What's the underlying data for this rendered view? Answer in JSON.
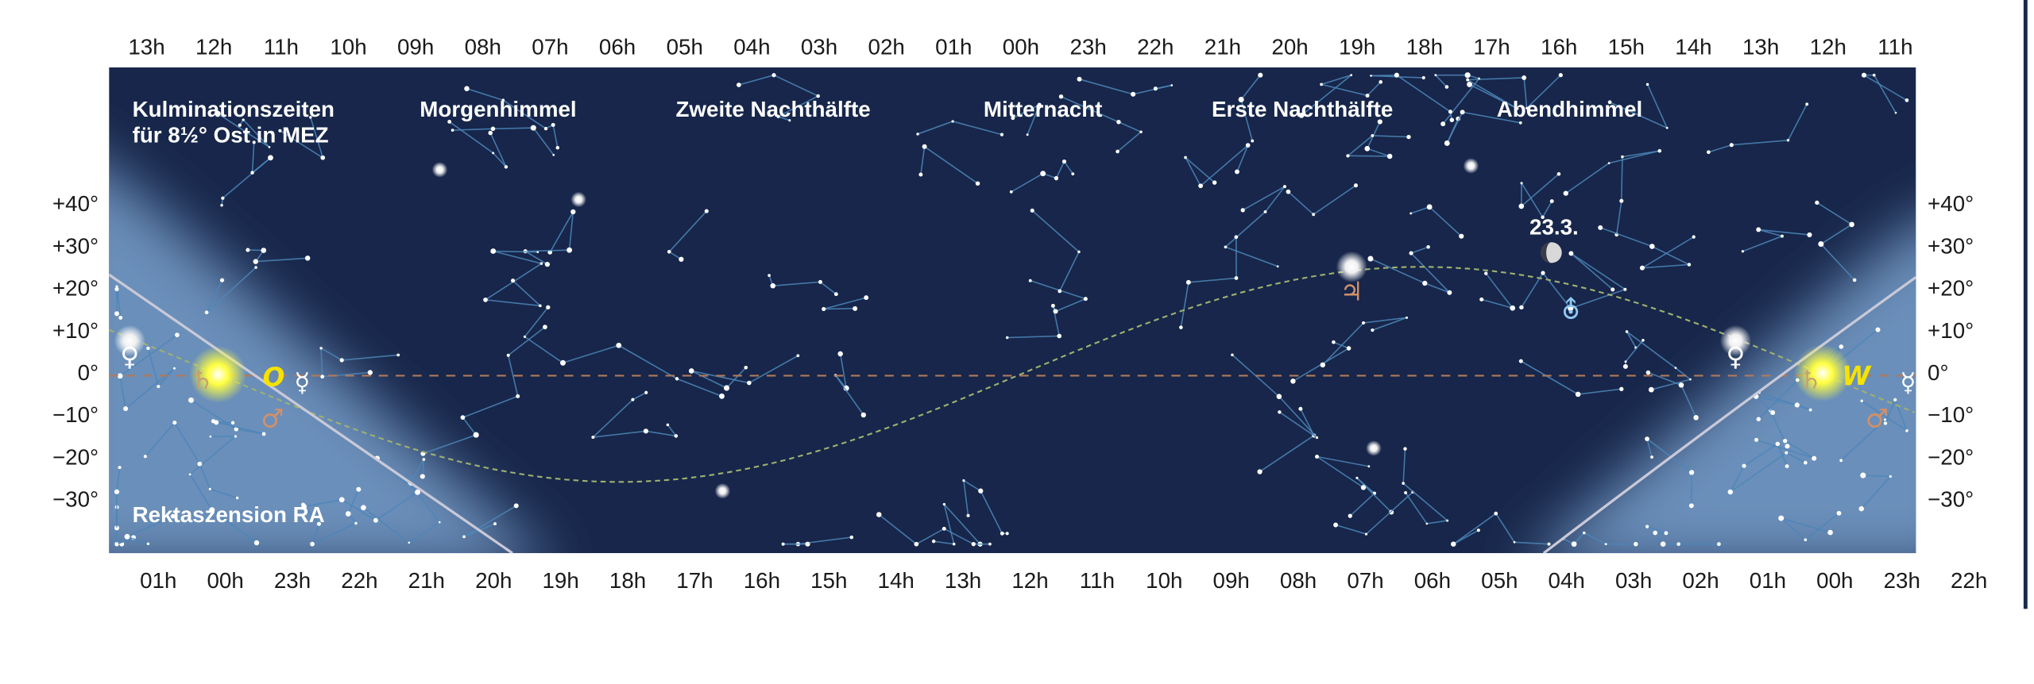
{
  "hours_top": [
    "13h",
    "12h",
    "11h",
    "10h",
    "09h",
    "08h",
    "07h",
    "06h",
    "05h",
    "04h",
    "03h",
    "02h",
    "01h",
    "00h",
    "23h",
    "22h",
    "21h",
    "20h",
    "19h",
    "18h",
    "17h",
    "16h",
    "15h",
    "14h",
    "13h",
    "12h",
    "11h"
  ],
  "hours_bottom": [
    "01h",
    "00h",
    "23h",
    "22h",
    "21h",
    "20h",
    "19h",
    "18h",
    "17h",
    "16h",
    "15h",
    "14h",
    "13h",
    "12h",
    "11h",
    "10h",
    "09h",
    "08h",
    "07h",
    "06h",
    "05h",
    "04h",
    "03h",
    "02h",
    "01h",
    "00h",
    "23h",
    "22h"
  ],
  "declination": [
    "+40°",
    "+30°",
    "+20°",
    "+10°",
    "0°",
    "−10°",
    "−20°",
    "−30°"
  ],
  "culmination_note": [
    "Kulminationszeiten",
    "für 8½° Ost in MEZ"
  ],
  "sections": [
    "Morgenhimmel",
    "Zweite Nachthälfte",
    "Mitternacht",
    "Erste Nachthälfte",
    "Abendhimmel"
  ],
  "ra_label": "Rektaszension RA",
  "moon_date": "23.3.",
  "planet_symbols": [
    "♀",
    "♄",
    "☿",
    "♂",
    "♃",
    "⛢",
    "O",
    "W"
  ]
}
